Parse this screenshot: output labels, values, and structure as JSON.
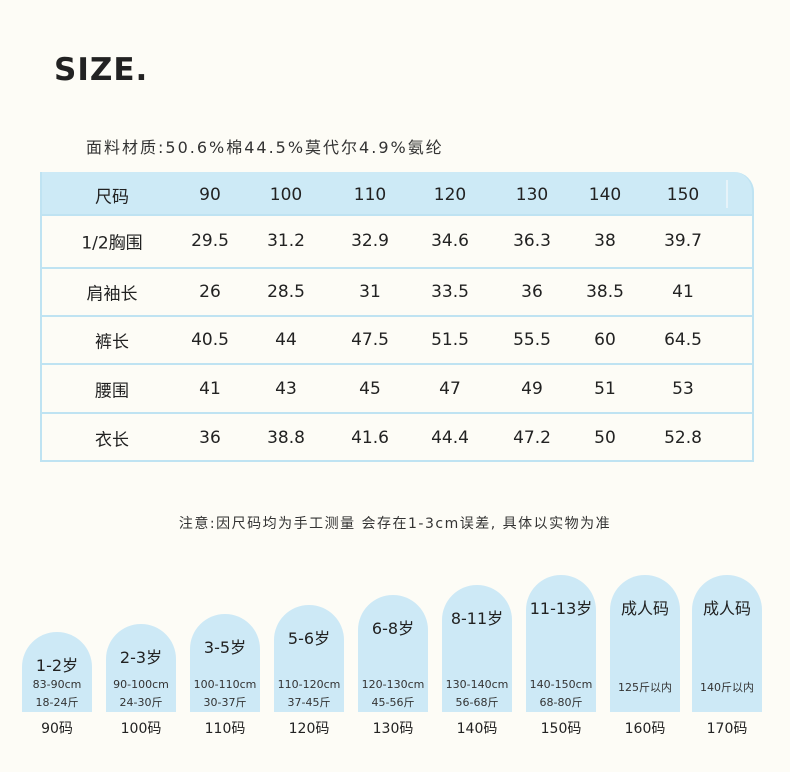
{
  "title": "SIZE.",
  "material": "面料材质:50.6%棉44.5%莫代尔4.9%氨纶",
  "table": {
    "header": [
      "尺码",
      "90",
      "100",
      "110",
      "120",
      "130",
      "140",
      "150"
    ],
    "rows": [
      [
        "1/2胸围",
        "29.5",
        "31.2",
        "32.9",
        "34.6",
        "36.3",
        "38",
        "39.7"
      ],
      [
        "肩袖长",
        "26",
        "28.5",
        "31",
        "33.5",
        "36",
        "38.5",
        "41"
      ],
      [
        "裤长",
        "40.5",
        "44",
        "47.5",
        "51.5",
        "55.5",
        "60",
        "64.5"
      ],
      [
        "腰围",
        "41",
        "43",
        "45",
        "47",
        "49",
        "51",
        "53"
      ],
      [
        "衣长",
        "36",
        "38.8",
        "41.6",
        "44.4",
        "47.2",
        "50",
        "52.8"
      ]
    ]
  },
  "note": "注意:因尺码均为手工测量 会存在1-3cm误差, 具体以实物为准",
  "cards": [
    {
      "age": "1-2岁",
      "lines": [
        "83-90cm",
        "18-24斤"
      ],
      "size": "90码"
    },
    {
      "age": "2-3岁",
      "lines": [
        "90-100cm",
        "24-30斤"
      ],
      "size": "100码"
    },
    {
      "age": "3-5岁",
      "lines": [
        "100-110cm",
        "30-37斤"
      ],
      "size": "110码"
    },
    {
      "age": "5-6岁",
      "lines": [
        "110-120cm",
        "37-45斤"
      ],
      "size": "120码"
    },
    {
      "age": "6-8岁",
      "lines": [
        "120-130cm",
        "45-56斤"
      ],
      "size": "130码"
    },
    {
      "age": "8-11岁",
      "lines": [
        "130-140cm",
        "56-68斤"
      ],
      "size": "140码"
    },
    {
      "age": "11-13岁",
      "lines": [
        "140-150cm",
        "68-80斤"
      ],
      "size": "150码"
    },
    {
      "age": "成人码",
      "lines": [
        "125斤以内"
      ],
      "size": "160码"
    },
    {
      "age": "成人码",
      "lines": [
        "140斤以内"
      ],
      "size": "170码"
    }
  ]
}
